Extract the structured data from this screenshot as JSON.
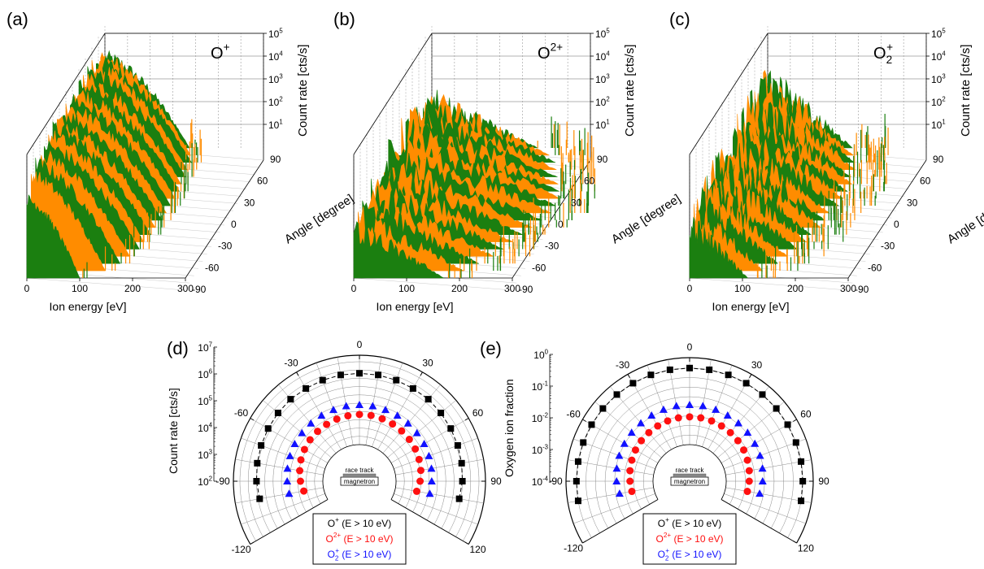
{
  "colors": {
    "green": "#1b7f10",
    "orange": "#ff8c00",
    "black": "#000000",
    "red": "#ff1010",
    "blue": "#1111ff",
    "grid": "#9a9a9a"
  },
  "chart_data": [
    {
      "type": "3d-waterfall",
      "panel": "(a)",
      "species": "O",
      "charge": "+",
      "sub": "",
      "xlabel": "Ion energy [eV]",
      "ylabel": "Angle [degree]",
      "zlabel": "Count rate [cts/s]",
      "xticks": [
        "0",
        "100",
        "200",
        "300"
      ],
      "yticks": [
        "90",
        "60",
        "30",
        "0",
        "-30",
        "-60",
        "-90"
      ],
      "zticks": [
        {
          "base": "10",
          "exp": "1"
        },
        {
          "base": "10",
          "exp": "2"
        },
        {
          "base": "10",
          "exp": "3"
        },
        {
          "base": "10",
          "exp": "4"
        },
        {
          "base": "10",
          "exp": "5"
        }
      ],
      "zscale": "log",
      "xlim": [
        0,
        350
      ],
      "ylim": [
        -90,
        90
      ],
      "angles": [
        -90,
        -80,
        -70,
        -60,
        -50,
        -40,
        -30,
        -20,
        -10,
        0,
        10,
        20,
        30,
        40,
        50,
        60,
        70,
        80,
        90
      ],
      "peak_log10_count": [
        3.7,
        4.5,
        4.7,
        4.8,
        4.9,
        5.0,
        5.0,
        5.0,
        5.0,
        5.0,
        5.0,
        5.0,
        5.0,
        5.0,
        5.0,
        4.9,
        4.8,
        4.6,
        4.3
      ],
      "max_energy_eV": [
        100,
        140,
        160,
        170,
        180,
        180,
        185,
        185,
        190,
        190,
        190,
        190,
        190,
        185,
        185,
        180,
        180,
        170,
        160
      ]
    },
    {
      "type": "3d-waterfall",
      "panel": "(b)",
      "species": "O",
      "charge": "2+",
      "sub": "",
      "xlabel": "Ion energy [eV]",
      "ylabel": "Angle [degree]",
      "zlabel": "Count rate [cts/s]",
      "xticks": [
        "0",
        "100",
        "200",
        "300"
      ],
      "yticks": [
        "90",
        "60",
        "30",
        "0",
        "-30",
        "-60",
        "-90"
      ],
      "zticks": [
        {
          "base": "10",
          "exp": "1"
        },
        {
          "base": "10",
          "exp": "2"
        },
        {
          "base": "10",
          "exp": "3"
        },
        {
          "base": "10",
          "exp": "4"
        },
        {
          "base": "10",
          "exp": "5"
        }
      ],
      "zscale": "log",
      "xlim": [
        0,
        350
      ],
      "ylim": [
        -90,
        90
      ],
      "angles": [
        -90,
        -80,
        -70,
        -60,
        -50,
        -40,
        -30,
        -20,
        -10,
        0,
        10,
        20,
        30,
        40,
        50,
        60,
        70,
        80,
        90
      ],
      "peak_log10_count": [
        2.8,
        3.0,
        3.1,
        3.2,
        3.3,
        3.4,
        3.5,
        3.5,
        3.6,
        3.6,
        3.6,
        3.6,
        3.5,
        3.5,
        3.4,
        3.3,
        3.2,
        3.0,
        2.7
      ],
      "max_energy_eV": [
        170,
        200,
        220,
        240,
        250,
        260,
        270,
        280,
        290,
        300,
        300,
        300,
        290,
        280,
        270,
        260,
        250,
        230,
        200
      ]
    },
    {
      "type": "3d-waterfall",
      "panel": "(c)",
      "species": "O",
      "charge": "+",
      "sub": "2",
      "xlabel": "Ion energy [eV]",
      "ylabel": "Angle [degree]",
      "zlabel": "Count rate [cts/s]",
      "xticks": [
        "0",
        "100",
        "200",
        "300"
      ],
      "yticks": [
        "90",
        "60",
        "30",
        "0",
        "-30",
        "-60",
        "-90"
      ],
      "zticks": [
        {
          "base": "10",
          "exp": "1"
        },
        {
          "base": "10",
          "exp": "2"
        },
        {
          "base": "10",
          "exp": "3"
        },
        {
          "base": "10",
          "exp": "4"
        },
        {
          "base": "10",
          "exp": "5"
        }
      ],
      "zscale": "log",
      "xlim": [
        0,
        350
      ],
      "ylim": [
        -90,
        90
      ],
      "angles": [
        -90,
        -80,
        -70,
        -60,
        -50,
        -40,
        -30,
        -20,
        -10,
        0,
        10,
        20,
        30,
        40,
        50,
        60,
        70,
        80,
        90
      ],
      "peak_log10_count": [
        3.0,
        3.3,
        3.5,
        3.6,
        3.7,
        3.8,
        3.9,
        3.9,
        3.9,
        4.0,
        4.0,
        4.0,
        4.0,
        4.0,
        4.1,
        4.2,
        4.3,
        4.1,
        3.7
      ],
      "max_energy_eV": [
        110,
        130,
        150,
        160,
        170,
        180,
        180,
        190,
        190,
        190,
        200,
        200,
        200,
        200,
        190,
        190,
        180,
        170,
        160
      ]
    },
    {
      "type": "polar-scatter",
      "panel": "(d)",
      "rlabel": "Count rate [cts/s]",
      "rscale": "log",
      "rticks": [
        {
          "base": "10",
          "exp": "2"
        },
        {
          "base": "10",
          "exp": "3"
        },
        {
          "base": "10",
          "exp": "4"
        },
        {
          "base": "10",
          "exp": "5"
        },
        {
          "base": "10",
          "exp": "6"
        },
        {
          "base": "10",
          "exp": "7"
        }
      ],
      "rlim_log10": [
        2,
        7
      ],
      "angle_ticks": [
        "-120",
        "-90",
        "-60",
        "-30",
        "0",
        "30",
        "60",
        "90",
        "120"
      ],
      "inset_top": "race track",
      "inset_bottom": "magnetron",
      "series": [
        {
          "species": "O",
          "charge": "+",
          "sub": "",
          "suffix": " (E > 10 eV)",
          "marker": "square",
          "color": "#000000",
          "angles": [
            -100,
            -90,
            -80,
            -70,
            -60,
            -50,
            -40,
            -30,
            -20,
            -10,
            0,
            10,
            20,
            30,
            40,
            50,
            60,
            70,
            80,
            90,
            100
          ],
          "log10_values": [
            5.9,
            6.0,
            6.05,
            6.1,
            6.15,
            6.2,
            6.25,
            6.25,
            6.28,
            6.3,
            6.3,
            6.3,
            6.28,
            6.25,
            6.25,
            6.2,
            6.15,
            6.1,
            6.05,
            6.0,
            5.9
          ]
        },
        {
          "species": "O",
          "charge": "2+",
          "sub": "",
          "suffix": " (E > 10 eV)",
          "marker": "circle",
          "color": "#ff1010",
          "angles": [
            -100,
            -90,
            -80,
            -70,
            -60,
            -50,
            -40,
            -30,
            -20,
            -10,
            0,
            10,
            20,
            30,
            40,
            50,
            60,
            70,
            80,
            90,
            100
          ],
          "log10_values": [
            3.2,
            3.35,
            3.45,
            3.55,
            3.62,
            3.68,
            3.72,
            3.75,
            3.78,
            3.8,
            3.82,
            3.82,
            3.8,
            3.78,
            3.75,
            3.72,
            3.68,
            3.62,
            3.55,
            3.45,
            3.3
          ]
        },
        {
          "species": "O",
          "charge": "+",
          "sub": "2",
          "suffix": " (E > 10 eV)",
          "marker": "triangle",
          "color": "#1111ff",
          "angles": [
            -100,
            -90,
            -80,
            -70,
            -60,
            -50,
            -40,
            -30,
            -20,
            -10,
            0,
            10,
            20,
            30,
            40,
            50,
            60,
            70,
            80,
            90,
            100
          ],
          "log10_values": [
            4.1,
            4.15,
            4.2,
            4.25,
            4.3,
            4.32,
            4.35,
            4.37,
            4.38,
            4.4,
            4.4,
            4.4,
            4.38,
            4.37,
            4.35,
            4.32,
            4.3,
            4.25,
            4.2,
            4.15,
            4.1
          ]
        }
      ]
    },
    {
      "type": "polar-scatter",
      "panel": "(e)",
      "rlabel": "Oxygen ion fraction",
      "rscale": "log",
      "rticks": [
        {
          "base": "10",
          "exp": "-4"
        },
        {
          "base": "10",
          "exp": "-3"
        },
        {
          "base": "10",
          "exp": "-2"
        },
        {
          "base": "10",
          "exp": "-1"
        },
        {
          "base": "10",
          "exp": "0"
        }
      ],
      "rlim_log10": [
        -4,
        0.2
      ],
      "angle_ticks": [
        "-120",
        "-90",
        "-60",
        "-30",
        "0",
        "30",
        "60",
        "90",
        "120"
      ],
      "inset_top": "race track",
      "inset_bottom": "magnetron",
      "series": [
        {
          "species": "O",
          "charge": "+",
          "sub": "",
          "suffix": " (E > 10 eV)",
          "marker": "square",
          "color": "#000000",
          "angles": [
            -100,
            -90,
            -80,
            -70,
            -60,
            -50,
            -40,
            -30,
            -20,
            -10,
            0,
            10,
            20,
            30,
            40,
            50,
            60,
            70,
            80,
            90,
            100
          ],
          "log10_values": [
            -0.005,
            -0.005,
            -0.005,
            -0.005,
            -0.004,
            -0.004,
            -0.004,
            -0.003,
            -0.003,
            -0.003,
            -0.003,
            -0.003,
            -0.003,
            -0.003,
            -0.004,
            -0.004,
            -0.004,
            -0.005,
            -0.005,
            -0.005,
            -0.005
          ]
        },
        {
          "species": "O",
          "charge": "2+",
          "sub": "",
          "suffix": " (E > 10 eV)",
          "marker": "circle",
          "color": "#ff1010",
          "angles": [
            -100,
            -90,
            -80,
            -70,
            -60,
            -50,
            -40,
            -30,
            -20,
            -10,
            0,
            10,
            20,
            30,
            40,
            50,
            60,
            70,
            80,
            90,
            100
          ],
          "log10_values": [
            -2.85,
            -2.8,
            -2.75,
            -2.7,
            -2.65,
            -2.62,
            -2.6,
            -2.58,
            -2.56,
            -2.55,
            -2.55,
            -2.55,
            -2.56,
            -2.58,
            -2.6,
            -2.62,
            -2.65,
            -2.7,
            -2.75,
            -2.8,
            -2.85
          ]
        },
        {
          "species": "O",
          "charge": "+",
          "sub": "2",
          "suffix": " (E > 10 eV)",
          "marker": "triangle",
          "color": "#1111ff",
          "angles": [
            -100,
            -90,
            -80,
            -70,
            -60,
            -50,
            -40,
            -30,
            -20,
            -10,
            0,
            10,
            20,
            30,
            40,
            50,
            60,
            70,
            80,
            90,
            100
          ],
          "log10_values": [
            -2.2,
            -2.1,
            -2.05,
            -2.0,
            -1.98,
            -1.96,
            -1.95,
            -1.94,
            -1.93,
            -1.92,
            -1.92,
            -1.92,
            -1.93,
            -1.94,
            -1.95,
            -1.96,
            -1.98,
            -2.0,
            -2.05,
            -2.1,
            -2.2
          ]
        }
      ]
    }
  ]
}
